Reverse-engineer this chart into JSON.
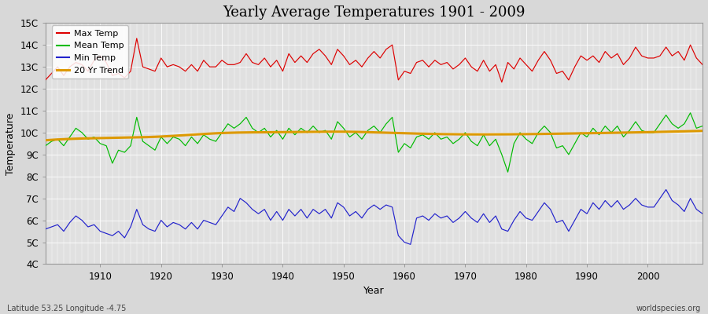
{
  "title": "Yearly Average Temperatures 1901 - 2009",
  "xlabel": "Year",
  "ylabel": "Temperature",
  "subtitle_left": "Latitude 53.25 Longitude -4.75",
  "subtitle_right": "worldspecies.org",
  "ylim": [
    4,
    15
  ],
  "xlim": [
    1901,
    2009
  ],
  "yticks": [
    4,
    5,
    6,
    7,
    8,
    9,
    10,
    11,
    12,
    13,
    14,
    15
  ],
  "xticks": [
    1910,
    1920,
    1930,
    1940,
    1950,
    1960,
    1970,
    1980,
    1990,
    2000
  ],
  "ytick_labels": [
    "4C",
    "5C",
    "6C",
    "7C",
    "8C",
    "9C",
    "10C",
    "11C",
    "12C",
    "13C",
    "14C",
    "15C"
  ],
  "legend_labels": [
    "Max Temp",
    "Mean Temp",
    "Min Temp",
    "20 Yr Trend"
  ],
  "legend_colors": [
    "#dd0000",
    "#00bb00",
    "#2222cc",
    "#dd9900"
  ],
  "line_colors": {
    "max": "#dd0000",
    "mean": "#00bb00",
    "min": "#2222cc",
    "trend": "#dd9900"
  },
  "background_color": "#d8d8d8",
  "plot_background": "#e0e0e0",
  "grid_color": "#ffffff",
  "max_temp": [
    12.4,
    12.7,
    13.0,
    12.6,
    13.0,
    13.2,
    13.1,
    12.8,
    13.3,
    13.5,
    13.2,
    12.6,
    12.7,
    12.5,
    12.8,
    14.3,
    13.0,
    12.9,
    12.8,
    13.4,
    13.0,
    13.1,
    13.0,
    12.8,
    13.1,
    12.8,
    13.3,
    13.0,
    13.0,
    13.3,
    13.1,
    13.1,
    13.2,
    13.6,
    13.2,
    13.1,
    13.4,
    13.0,
    13.3,
    12.8,
    13.6,
    13.2,
    13.5,
    13.2,
    13.6,
    13.8,
    13.5,
    13.1,
    13.8,
    13.5,
    13.1,
    13.3,
    13.0,
    13.4,
    13.7,
    13.4,
    13.8,
    14.0,
    12.4,
    12.8,
    12.7,
    13.2,
    13.3,
    13.0,
    13.3,
    13.1,
    13.2,
    12.9,
    13.1,
    13.4,
    13.0,
    12.8,
    13.3,
    12.8,
    13.1,
    12.3,
    13.2,
    12.9,
    13.4,
    13.1,
    12.8,
    13.3,
    13.7,
    13.3,
    12.7,
    12.8,
    12.4,
    13.0,
    13.5,
    13.3,
    13.5,
    13.2,
    13.7,
    13.4,
    13.6,
    13.1,
    13.4,
    13.9,
    13.5,
    13.4,
    13.4,
    13.5,
    13.9,
    13.5,
    13.7,
    13.3,
    14.0,
    13.4,
    13.1
  ],
  "mean_temp": [
    9.4,
    9.6,
    9.7,
    9.4,
    9.8,
    10.2,
    10.0,
    9.7,
    9.8,
    9.5,
    9.4,
    8.6,
    9.2,
    9.1,
    9.4,
    10.7,
    9.6,
    9.4,
    9.2,
    9.8,
    9.5,
    9.8,
    9.7,
    9.4,
    9.8,
    9.5,
    9.9,
    9.7,
    9.6,
    10.0,
    10.4,
    10.2,
    10.4,
    10.7,
    10.2,
    10.0,
    10.2,
    9.8,
    10.1,
    9.7,
    10.2,
    9.9,
    10.2,
    10.0,
    10.3,
    10.0,
    10.1,
    9.7,
    10.5,
    10.2,
    9.8,
    10.0,
    9.7,
    10.1,
    10.3,
    10.0,
    10.4,
    10.7,
    9.1,
    9.5,
    9.3,
    9.8,
    9.9,
    9.7,
    10.0,
    9.7,
    9.8,
    9.5,
    9.7,
    10.0,
    9.6,
    9.4,
    9.9,
    9.4,
    9.7,
    9.0,
    8.2,
    9.5,
    10.0,
    9.7,
    9.5,
    10.0,
    10.3,
    10.0,
    9.3,
    9.4,
    9.0,
    9.5,
    10.0,
    9.8,
    10.2,
    9.9,
    10.3,
    10.0,
    10.3,
    9.8,
    10.1,
    10.5,
    10.1,
    10.0,
    10.0,
    10.4,
    10.8,
    10.4,
    10.2,
    10.4,
    10.9,
    10.2,
    10.3
  ],
  "min_temp": [
    5.6,
    5.7,
    5.8,
    5.5,
    5.9,
    6.2,
    6.0,
    5.7,
    5.8,
    5.5,
    5.4,
    5.3,
    5.5,
    5.2,
    5.7,
    6.5,
    5.8,
    5.6,
    5.5,
    6.0,
    5.7,
    5.9,
    5.8,
    5.6,
    5.9,
    5.6,
    6.0,
    5.9,
    5.8,
    6.2,
    6.6,
    6.4,
    7.0,
    6.8,
    6.5,
    6.3,
    6.5,
    6.0,
    6.4,
    6.0,
    6.5,
    6.2,
    6.5,
    6.1,
    6.5,
    6.3,
    6.5,
    6.1,
    6.8,
    6.6,
    6.2,
    6.4,
    6.1,
    6.5,
    6.7,
    6.5,
    6.7,
    6.6,
    5.3,
    5.0,
    4.9,
    6.1,
    6.2,
    6.0,
    6.3,
    6.1,
    6.2,
    5.9,
    6.1,
    6.4,
    6.1,
    5.9,
    6.3,
    5.9,
    6.2,
    5.6,
    5.5,
    6.0,
    6.4,
    6.1,
    6.0,
    6.4,
    6.8,
    6.5,
    5.9,
    6.0,
    5.5,
    6.0,
    6.5,
    6.3,
    6.8,
    6.5,
    6.9,
    6.6,
    6.9,
    6.5,
    6.7,
    7.0,
    6.7,
    6.6,
    6.6,
    7.0,
    7.4,
    6.9,
    6.7,
    6.4,
    7.0,
    6.5,
    6.3
  ],
  "trend_years": [
    1901,
    1910,
    1920,
    1930,
    1940,
    1950,
    1960,
    1970,
    1980,
    1990,
    2000,
    2009
  ],
  "trend_vals": [
    9.65,
    9.75,
    9.82,
    9.98,
    10.02,
    10.04,
    9.97,
    9.92,
    9.93,
    9.97,
    10.02,
    10.08
  ]
}
